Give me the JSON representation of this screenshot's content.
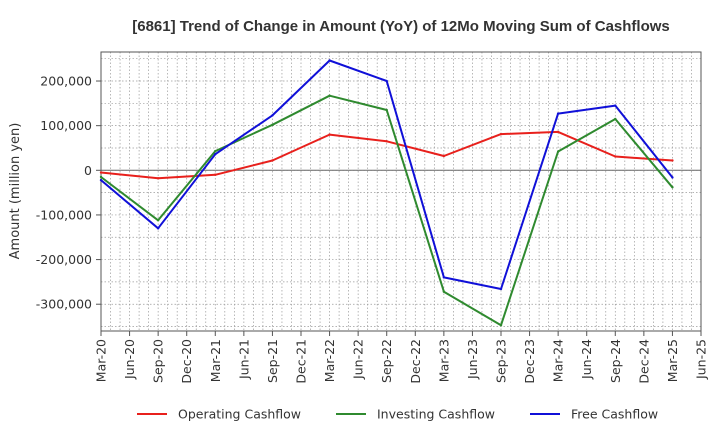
{
  "chart_data": {
    "type": "line",
    "title": "[6861]  Trend of Change in Amount (YoY) of 12Mo Moving Sum of Cashflows",
    "xlabel": "",
    "ylabel": "Amount (million yen)",
    "ylim": [
      -360000,
      265000
    ],
    "yticks": [
      200000,
      100000,
      0,
      -100000,
      -200000,
      -300000
    ],
    "ytick_labels": [
      "200,000",
      "100,000",
      "0",
      "-100,000",
      "-200,000",
      "-300,000"
    ],
    "x_ticks": [
      "Mar-20",
      "Jun-20",
      "Sep-20",
      "Dec-20",
      "Mar-21",
      "Jun-21",
      "Sep-21",
      "Dec-21",
      "Mar-22",
      "Jun-22",
      "Sep-22",
      "Dec-22",
      "Mar-23",
      "Jun-23",
      "Sep-23",
      "Dec-23",
      "Mar-24",
      "Jun-24",
      "Sep-24",
      "Dec-24",
      "Mar-25",
      "Jun-25"
    ],
    "x": [
      "Mar-20",
      "Sep-20",
      "Mar-21",
      "Sep-21",
      "Mar-22",
      "Sep-22",
      "Mar-23",
      "Sep-23",
      "Mar-24",
      "Sep-24",
      "Mar-25"
    ],
    "series": [
      {
        "name": "Operating Cashflow",
        "color": "#e8201c",
        "values": [
          -5000,
          -18000,
          -10000,
          22000,
          80000,
          65000,
          32000,
          81000,
          86000,
          31000,
          22000
        ]
      },
      {
        "name": "Investing Cashflow",
        "color": "#2f8a2f",
        "values": [
          -15000,
          -112000,
          43000,
          102000,
          167000,
          135000,
          -272000,
          -347000,
          42000,
          115000,
          -38000
        ]
      },
      {
        "name": "Free Cashflow",
        "color": "#1010d8",
        "values": [
          -22000,
          -130000,
          36000,
          123000,
          246000,
          200000,
          -240000,
          -266000,
          127000,
          145000,
          -16000
        ]
      }
    ],
    "grid": true,
    "legend_position": "bottom"
  }
}
